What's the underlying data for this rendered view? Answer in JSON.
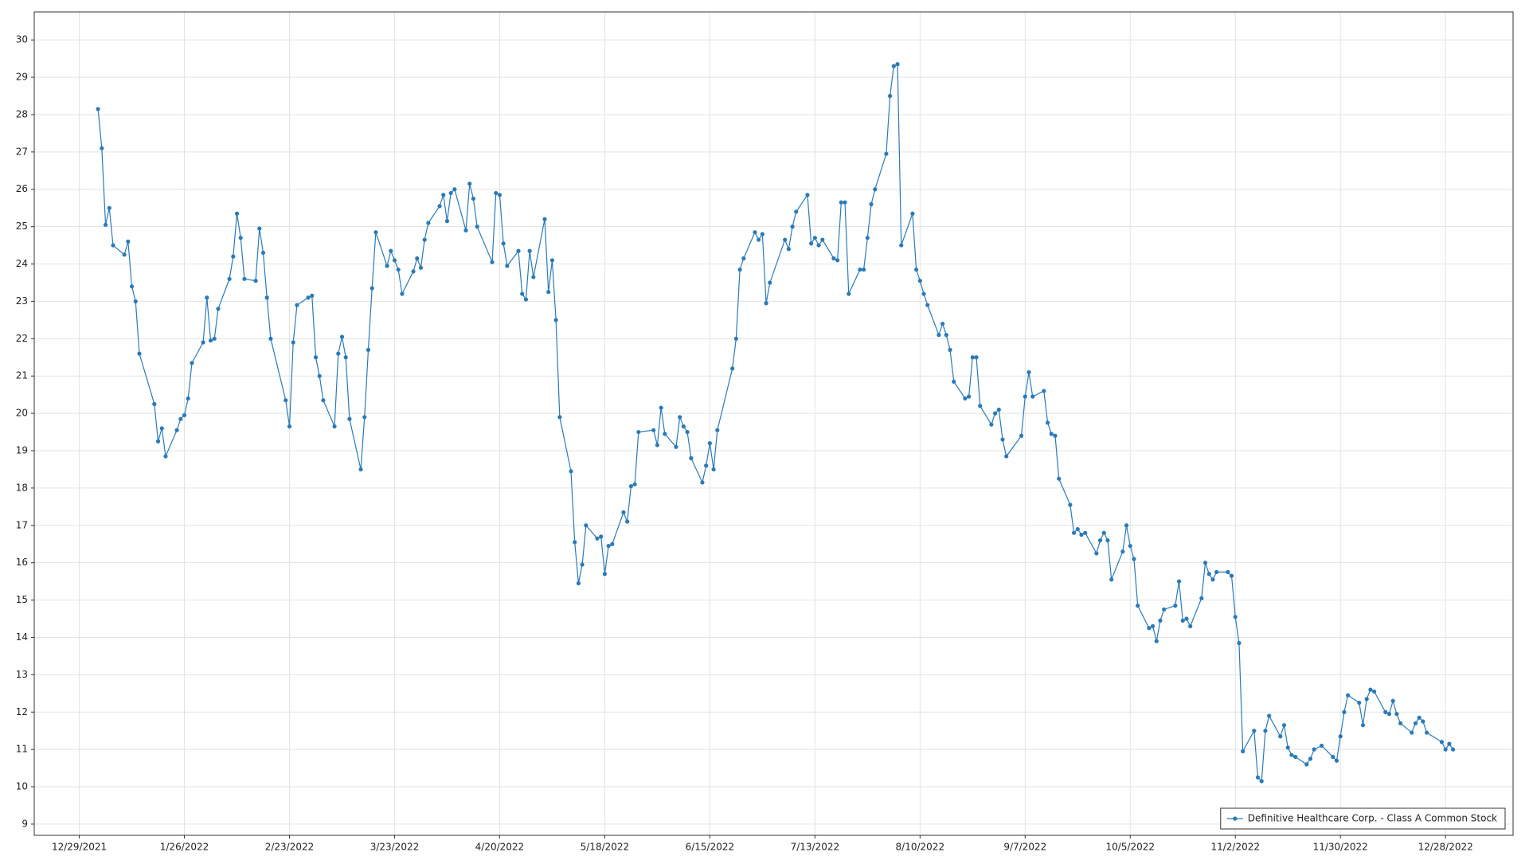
{
  "chart_data": {
    "type": "line",
    "x": [
      "1/3/2022",
      "1/4/2022",
      "1/5/2022",
      "1/6/2022",
      "1/7/2022",
      "1/10/2022",
      "1/11/2022",
      "1/12/2022",
      "1/13/2022",
      "1/14/2022",
      "1/18/2022",
      "1/19/2022",
      "1/20/2022",
      "1/21/2022",
      "1/24/2022",
      "1/25/2022",
      "1/26/2022",
      "1/27/2022",
      "1/28/2022",
      "1/31/2022",
      "2/1/2022",
      "2/2/2022",
      "2/3/2022",
      "2/4/2022",
      "2/7/2022",
      "2/8/2022",
      "2/9/2022",
      "2/10/2022",
      "2/11/2022",
      "2/14/2022",
      "2/15/2022",
      "2/16/2022",
      "2/17/2022",
      "2/18/2022",
      "2/22/2022",
      "2/23/2022",
      "2/24/2022",
      "2/25/2022",
      "2/28/2022",
      "3/1/2022",
      "3/2/2022",
      "3/3/2022",
      "3/4/2022",
      "3/7/2022",
      "3/8/2022",
      "3/9/2022",
      "3/10/2022",
      "3/11/2022",
      "3/14/2022",
      "3/15/2022",
      "3/16/2022",
      "3/17/2022",
      "3/18/2022",
      "3/21/2022",
      "3/22/2022",
      "3/23/2022",
      "3/24/2022",
      "3/25/2022",
      "3/28/2022",
      "3/29/2022",
      "3/30/2022",
      "3/31/2022",
      "4/1/2022",
      "4/4/2022",
      "4/5/2022",
      "4/6/2022",
      "4/7/2022",
      "4/8/2022",
      "4/11/2022",
      "4/12/2022",
      "4/13/2022",
      "4/14/2022",
      "4/18/2022",
      "4/19/2022",
      "4/20/2022",
      "4/21/2022",
      "4/22/2022",
      "4/25/2022",
      "4/26/2022",
      "4/27/2022",
      "4/28/2022",
      "4/29/2022",
      "5/2/2022",
      "5/3/2022",
      "5/4/2022",
      "5/5/2022",
      "5/6/2022",
      "5/9/2022",
      "5/10/2022",
      "5/11/2022",
      "5/12/2022",
      "5/13/2022",
      "5/16/2022",
      "5/17/2022",
      "5/18/2022",
      "5/19/2022",
      "5/20/2022",
      "5/23/2022",
      "5/24/2022",
      "5/25/2022",
      "5/26/2022",
      "5/27/2022",
      "5/31/2022",
      "6/1/2022",
      "6/2/2022",
      "6/3/2022",
      "6/6/2022",
      "6/7/2022",
      "6/8/2022",
      "6/9/2022",
      "6/10/2022",
      "6/13/2022",
      "6/14/2022",
      "6/15/2022",
      "6/16/2022",
      "6/17/2022",
      "6/21/2022",
      "6/22/2022",
      "6/23/2022",
      "6/24/2022",
      "6/27/2022",
      "6/28/2022",
      "6/29/2022",
      "6/30/2022",
      "7/1/2022",
      "7/5/2022",
      "7/6/2022",
      "7/7/2022",
      "7/8/2022",
      "7/11/2022",
      "7/12/2022",
      "7/13/2022",
      "7/14/2022",
      "7/15/2022",
      "7/18/2022",
      "7/19/2022",
      "7/20/2022",
      "7/21/2022",
      "7/22/2022",
      "7/25/2022",
      "7/26/2022",
      "7/27/2022",
      "7/28/2022",
      "7/29/2022",
      "8/1/2022",
      "8/2/2022",
      "8/3/2022",
      "8/4/2022",
      "8/5/2022",
      "8/8/2022",
      "8/9/2022",
      "8/10/2022",
      "8/11/2022",
      "8/12/2022",
      "8/15/2022",
      "8/16/2022",
      "8/17/2022",
      "8/18/2022",
      "8/19/2022",
      "8/22/2022",
      "8/23/2022",
      "8/24/2022",
      "8/25/2022",
      "8/26/2022",
      "8/29/2022",
      "8/30/2022",
      "8/31/2022",
      "9/1/2022",
      "9/2/2022",
      "9/6/2022",
      "9/7/2022",
      "9/8/2022",
      "9/9/2022",
      "9/12/2022",
      "9/13/2022",
      "9/14/2022",
      "9/15/2022",
      "9/16/2022",
      "9/19/2022",
      "9/20/2022",
      "9/21/2022",
      "9/22/2022",
      "9/23/2022",
      "9/26/2022",
      "9/27/2022",
      "9/28/2022",
      "9/29/2022",
      "9/30/2022",
      "10/3/2022",
      "10/4/2022",
      "10/5/2022",
      "10/6/2022",
      "10/7/2022",
      "10/10/2022",
      "10/11/2022",
      "10/12/2022",
      "10/13/2022",
      "10/14/2022",
      "10/17/2022",
      "10/18/2022",
      "10/19/2022",
      "10/20/2022",
      "10/21/2022",
      "10/24/2022",
      "10/25/2022",
      "10/26/2022",
      "10/27/2022",
      "10/28/2022",
      "10/31/2022",
      "11/1/2022",
      "11/2/2022",
      "11/3/2022",
      "11/4/2022",
      "11/7/2022",
      "11/8/2022",
      "11/9/2022",
      "11/10/2022",
      "11/11/2022",
      "11/14/2022",
      "11/15/2022",
      "11/16/2022",
      "11/17/2022",
      "11/18/2022",
      "11/21/2022",
      "11/22/2022",
      "11/23/2022",
      "11/25/2022",
      "11/28/2022",
      "11/29/2022",
      "11/30/2022",
      "12/1/2022",
      "12/2/2022",
      "12/5/2022",
      "12/6/2022",
      "12/7/2022",
      "12/8/2022",
      "12/9/2022",
      "12/12/2022",
      "12/13/2022",
      "12/14/2022",
      "12/15/2022",
      "12/16/2022",
      "12/19/2022",
      "12/20/2022",
      "12/21/2022",
      "12/22/2022",
      "12/23/2022",
      "12/27/2022",
      "12/28/2022",
      "12/29/2022",
      "12/30/2022"
    ],
    "series": [
      {
        "name": "Definitive Healthcare Corp. - Class A Common Stock",
        "color": "#2a7ab8",
        "values": [
          28.15,
          27.1,
          25.05,
          25.5,
          24.5,
          24.25,
          24.6,
          23.4,
          23.0,
          21.6,
          20.25,
          19.25,
          19.6,
          18.85,
          19.55,
          19.85,
          19.95,
          20.4,
          21.35,
          21.9,
          23.1,
          21.95,
          22.0,
          22.8,
          23.6,
          24.2,
          25.35,
          24.7,
          23.6,
          23.55,
          24.95,
          24.3,
          23.1,
          22.0,
          20.35,
          19.65,
          21.9,
          22.9,
          23.1,
          23.15,
          21.5,
          21.0,
          20.35,
          19.65,
          21.6,
          22.05,
          21.5,
          19.85,
          18.5,
          19.9,
          21.7,
          23.35,
          24.85,
          23.95,
          24.35,
          24.1,
          23.85,
          23.2,
          23.8,
          24.15,
          23.9,
          24.65,
          25.1,
          25.55,
          25.85,
          25.15,
          25.9,
          26.0,
          24.9,
          26.15,
          25.75,
          25.0,
          24.05,
          25.9,
          25.85,
          24.55,
          23.95,
          24.35,
          23.2,
          23.05,
          24.35,
          23.65,
          25.2,
          23.25,
          24.1,
          22.5,
          19.9,
          18.45,
          16.55,
          15.45,
          15.95,
          17.0,
          16.65,
          16.7,
          15.7,
          16.45,
          16.5,
          17.35,
          17.1,
          18.05,
          18.1,
          19.5,
          19.55,
          19.15,
          20.15,
          19.45,
          19.1,
          19.9,
          19.65,
          19.5,
          18.8,
          18.15,
          18.6,
          19.2,
          18.5,
          19.55,
          21.2,
          22.0,
          23.85,
          24.15,
          24.85,
          24.65,
          24.8,
          22.95,
          23.5,
          24.65,
          24.4,
          25.0,
          25.4,
          25.85,
          24.55,
          24.7,
          24.5,
          24.65,
          24.15,
          24.1,
          25.65,
          25.65,
          23.2,
          23.85,
          23.85,
          24.7,
          25.6,
          26.0,
          26.95,
          28.5,
          29.3,
          29.35,
          24.5,
          25.35,
          23.85,
          23.55,
          23.2,
          22.9,
          22.1,
          22.4,
          22.1,
          21.7,
          20.85,
          20.4,
          20.45,
          21.5,
          21.5,
          20.2,
          19.7,
          20.0,
          20.1,
          19.3,
          18.85,
          19.4,
          20.45,
          21.1,
          20.45,
          20.6,
          19.75,
          19.45,
          19.4,
          18.25,
          17.55,
          16.8,
          16.9,
          16.75,
          16.8,
          16.25,
          16.6,
          16.8,
          16.6,
          15.55,
          16.3,
          17.0,
          16.45,
          16.1,
          14.85,
          14.25,
          14.3,
          13.9,
          14.45,
          14.75,
          14.85,
          15.5,
          14.45,
          14.5,
          14.3,
          15.05,
          16.0,
          15.7,
          15.55,
          15.75,
          15.75,
          15.65,
          14.55,
          13.85,
          10.95,
          11.5,
          10.25,
          10.15,
          11.5,
          11.9,
          11.35,
          11.65,
          11.05,
          10.85,
          10.8,
          10.6,
          10.75,
          11.0,
          11.1,
          10.8,
          10.7,
          11.35,
          12.0,
          12.45,
          12.25,
          11.65,
          12.35,
          12.6,
          12.55,
          12.0,
          11.95,
          12.3,
          11.95,
          11.7,
          11.45,
          11.7,
          11.85,
          11.75,
          11.45,
          11.2,
          11.0,
          11.15,
          11.0
        ]
      }
    ],
    "xlim": [
      "12/17/2021",
      "1/15/2023"
    ],
    "xticks": [
      "12/29/2021",
      "1/26/2022",
      "2/23/2022",
      "3/23/2022",
      "4/20/2022",
      "5/18/2022",
      "6/15/2022",
      "7/13/2022",
      "8/10/2022",
      "9/7/2022",
      "10/5/2022",
      "11/2/2022",
      "11/30/2022",
      "12/28/2022"
    ],
    "ylim": [
      8.7,
      30.75
    ],
    "yticks": [
      9,
      10,
      11,
      12,
      13,
      14,
      15,
      16,
      17,
      18,
      19,
      20,
      21,
      22,
      23,
      24,
      25,
      26,
      27,
      28,
      29,
      30
    ],
    "grid": true,
    "legend": "lower right"
  }
}
